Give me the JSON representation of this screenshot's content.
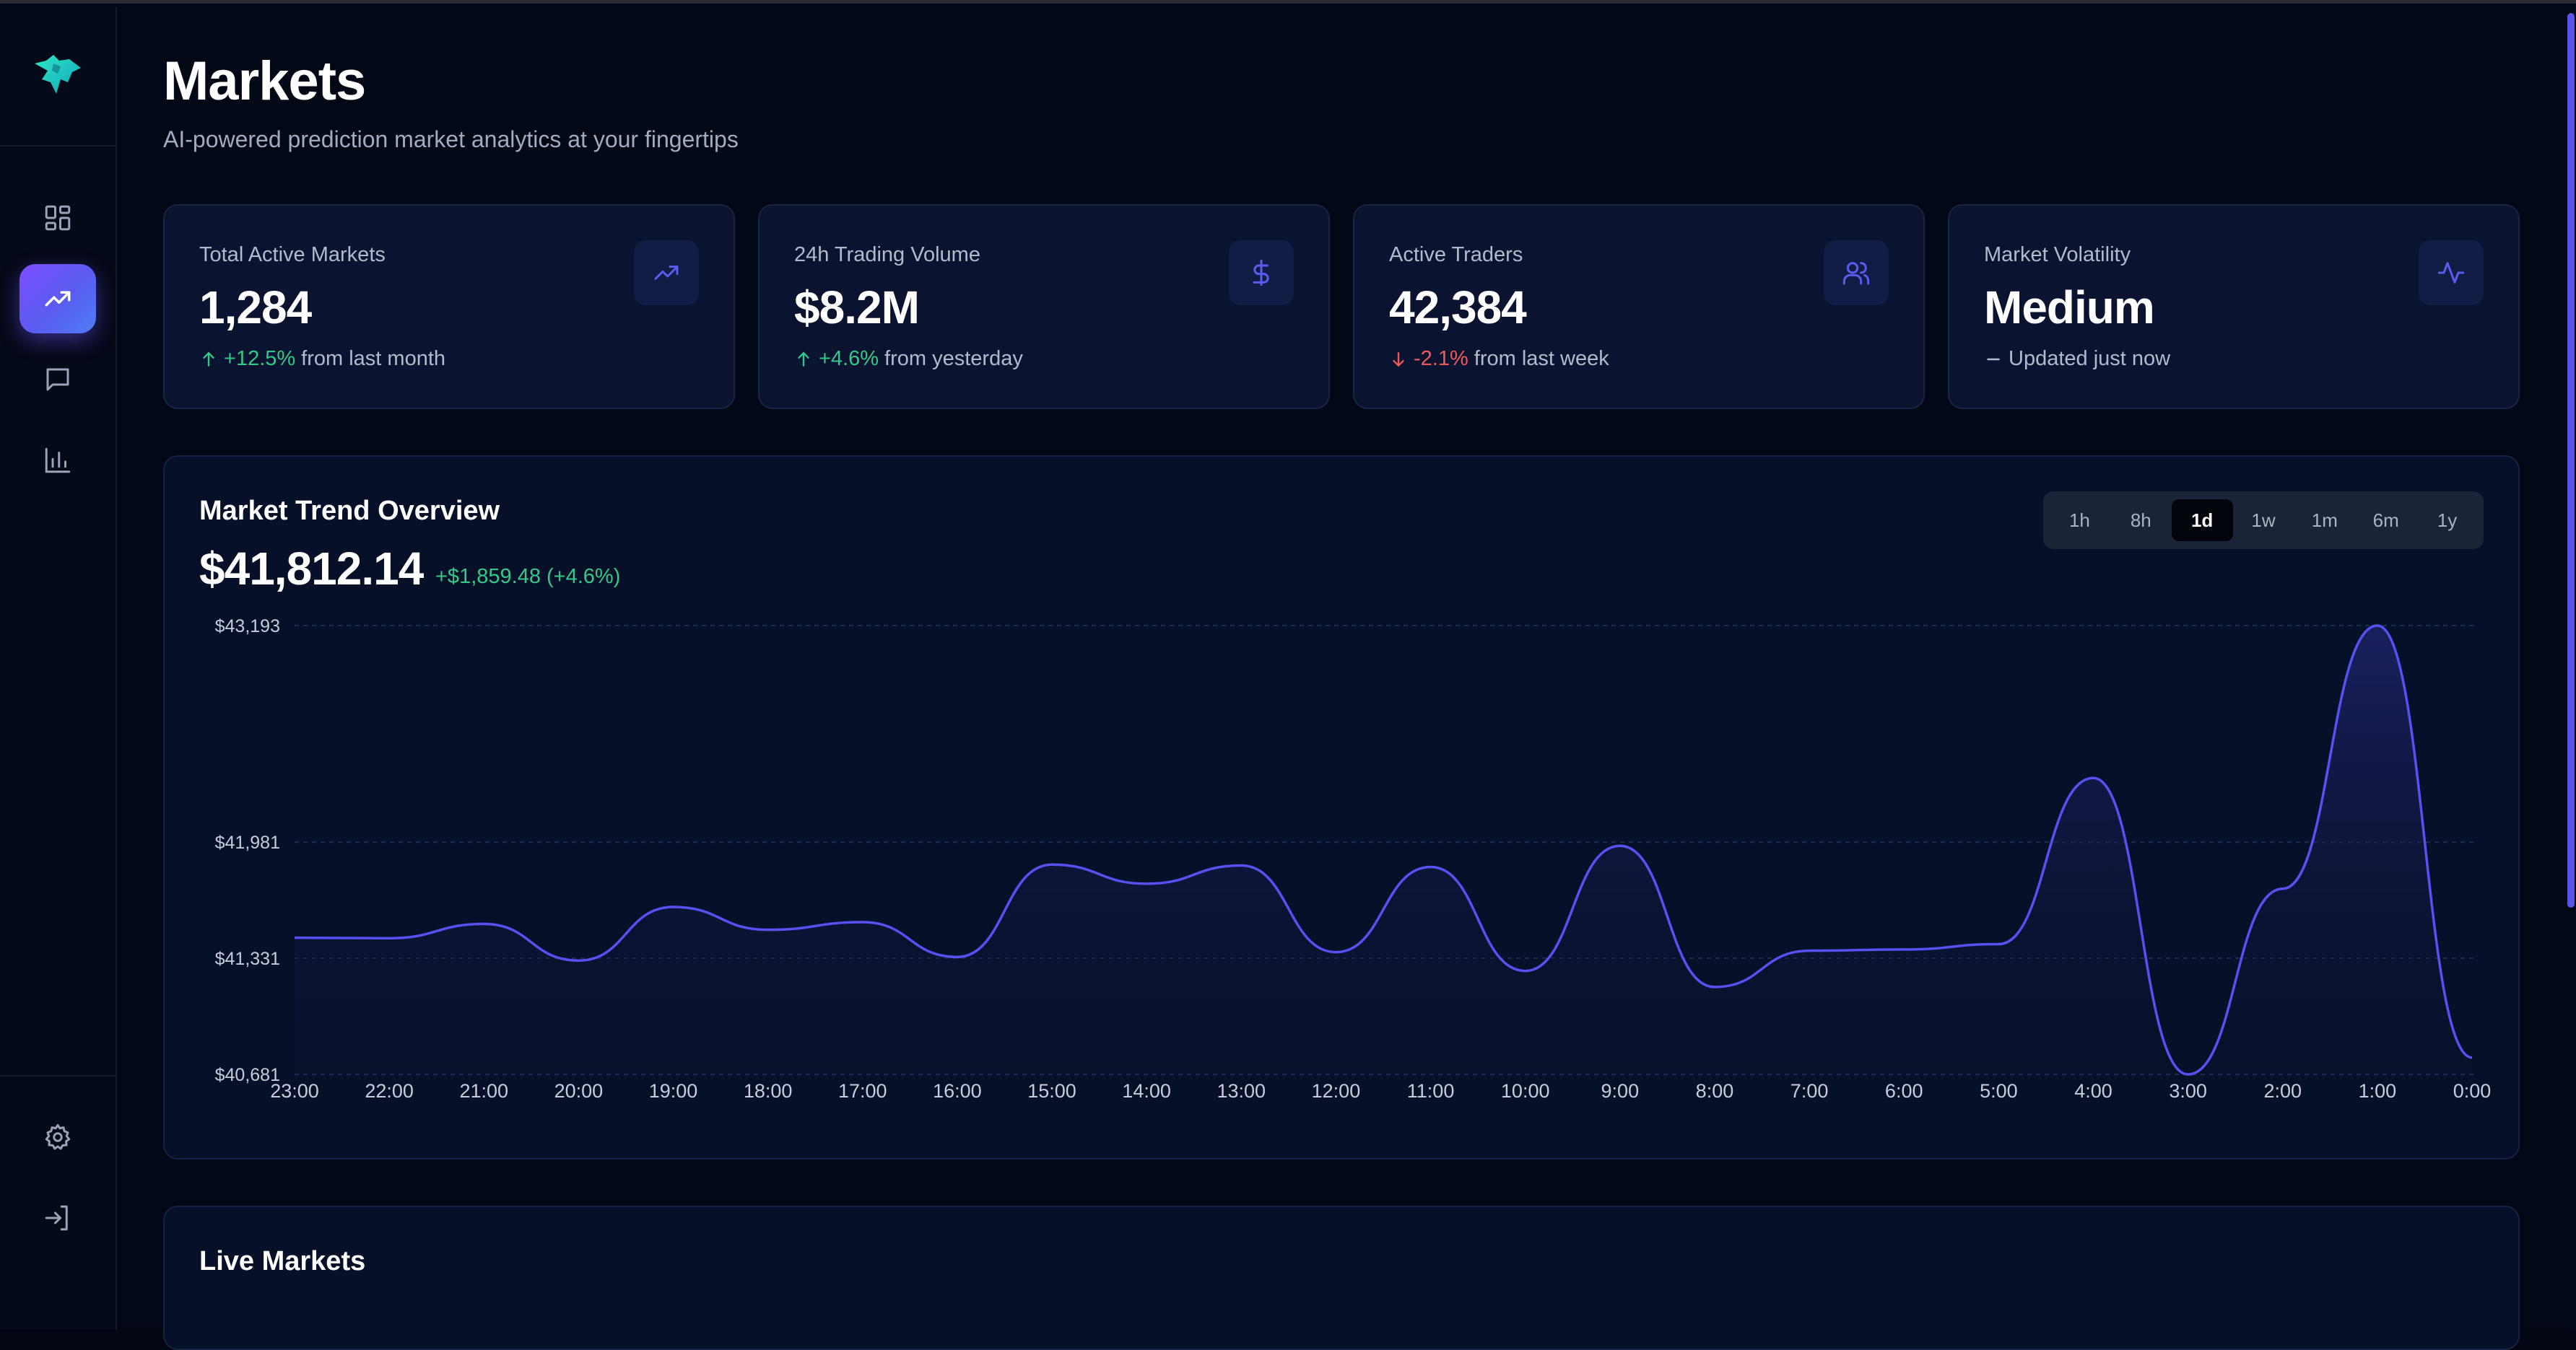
{
  "header": {
    "title": "Markets",
    "subtitle": "AI-powered prediction market analytics at your fingertips"
  },
  "sidebar": {
    "items": [
      {
        "name": "dashboard",
        "icon": "grid-icon",
        "active": false
      },
      {
        "name": "markets",
        "icon": "trending-up-icon",
        "active": true
      },
      {
        "name": "chat",
        "icon": "message-icon",
        "active": false
      },
      {
        "name": "analytics",
        "icon": "bar-chart-icon",
        "active": false
      }
    ],
    "bottom": [
      {
        "name": "settings",
        "icon": "gear-icon"
      },
      {
        "name": "logout",
        "icon": "log-in-icon"
      }
    ]
  },
  "stats": [
    {
      "label": "Total Active Markets",
      "value": "1,284",
      "change": "+12.5%",
      "change_dir": "up",
      "note": "from last month",
      "icon": "trending-up-icon"
    },
    {
      "label": "24h Trading Volume",
      "value": "$8.2M",
      "change": "+4.6%",
      "change_dir": "up",
      "note": "from yesterday",
      "icon": "dollar-icon"
    },
    {
      "label": "Active Traders",
      "value": "42,384",
      "change": "-2.1%",
      "change_dir": "down",
      "note": "from last week",
      "icon": "users-icon"
    },
    {
      "label": "Market Volatility",
      "value": "Medium",
      "change": "",
      "change_dir": "neutral",
      "note": "Updated just now",
      "icon": "activity-icon"
    }
  ],
  "trend": {
    "title": "Market Trend Overview",
    "price": "$41,812.14",
    "change": "+$1,859.48 (+4.6%)",
    "ranges": [
      "1h",
      "8h",
      "1d",
      "1w",
      "1m",
      "6m",
      "1y"
    ],
    "active_range": "1d"
  },
  "chart_data": {
    "type": "area",
    "x": [
      "23:00",
      "22:00",
      "21:00",
      "20:00",
      "19:00",
      "18:00",
      "17:00",
      "16:00",
      "15:00",
      "14:00",
      "13:00",
      "12:00",
      "11:00",
      "10:00",
      "9:00",
      "8:00",
      "7:00",
      "6:00",
      "5:00",
      "4:00",
      "3:00",
      "2:00",
      "1:00",
      "0:00"
    ],
    "values": [
      41446,
      41443,
      41523,
      41318,
      41618,
      41490,
      41533,
      41338,
      41855,
      41748,
      41850,
      41365,
      41842,
      41260,
      41960,
      41170,
      41373,
      41380,
      41410,
      42340,
      40681,
      41720,
      43193,
      40775
    ],
    "yticks": [
      40681,
      41331,
      41981,
      43193
    ],
    "ytick_labels": [
      "$40,681",
      "$41,331",
      "$41,981",
      "$43,193"
    ],
    "ylim": [
      40681,
      43193
    ],
    "grid": true,
    "color": "#5a4ff0"
  },
  "live": {
    "title": "Live Markets"
  },
  "colors": {
    "accent": "#6c5cf5",
    "positive": "#34c98a",
    "negative": "#f05a5a",
    "background": "#030816",
    "card": "#0a1430"
  }
}
